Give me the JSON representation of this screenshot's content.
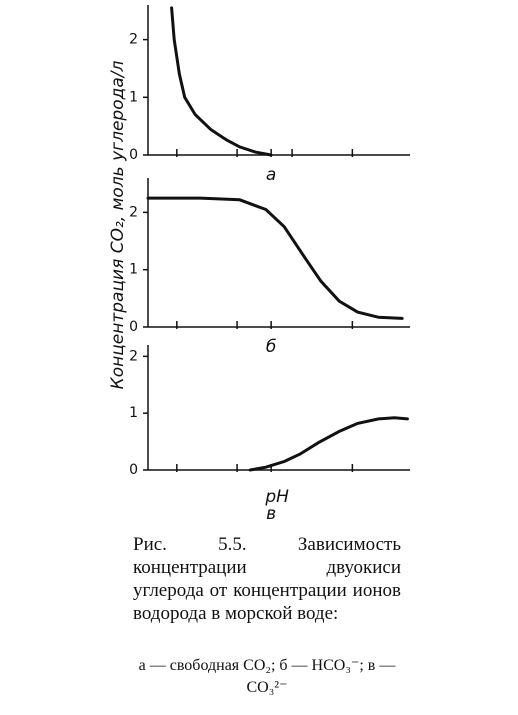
{
  "chart_data": [
    {
      "type": "line",
      "label": "а",
      "color": "#111",
      "x": [
        0.9,
        1.0,
        1.2,
        1.4,
        1.8,
        2.4,
        3.0,
        3.5,
        4.1,
        4.7
      ],
      "values": [
        2.55,
        2.0,
        1.4,
        1.0,
        0.7,
        0.44,
        0.26,
        0.14,
        0.05,
        0
      ],
      "xlim": [
        0,
        10
      ],
      "xticks": [
        1.1,
        3.4,
        4.7,
        5.5,
        7.8
      ],
      "ylim": [
        0,
        2.6
      ],
      "yticks": [
        0,
        1,
        2
      ]
    },
    {
      "type": "line",
      "label": "б",
      "color": "#111",
      "ylabel": "Концентрация CO₂, моль углерода/л",
      "x": [
        0,
        2,
        3.5,
        4.5,
        5.2,
        6.0,
        6.6,
        7.3,
        8.0,
        8.8,
        9.7
      ],
      "values": [
        2.25,
        2.25,
        2.22,
        2.05,
        1.75,
        1.2,
        0.8,
        0.45,
        0.26,
        0.17,
        0.15
      ],
      "xlim": [
        0,
        10
      ],
      "xticks": [
        1.1,
        3.4,
        4.7,
        7.8
      ],
      "ylim": [
        0,
        2.6
      ],
      "yticks": [
        0,
        1,
        2
      ]
    },
    {
      "type": "line",
      "label": "в",
      "color": "#111",
      "xlabel": "pH",
      "x": [
        3.9,
        4.5,
        5.2,
        5.8,
        6.5,
        7.3,
        8.0,
        8.8,
        9.4,
        9.9
      ],
      "values": [
        0,
        0.05,
        0.15,
        0.28,
        0.48,
        0.68,
        0.82,
        0.9,
        0.92,
        0.9
      ],
      "xlim": [
        0,
        10
      ],
      "xticks": [
        1.1,
        3.4,
        4.7,
        7.8
      ],
      "ylim": [
        0,
        2.2
      ],
      "yticks": [
        0,
        1,
        2
      ]
    }
  ],
  "caption": "Рис. 5.5. Зависимость концентрации двуокиси углерода от концентрации ионов водорода в морской воде:",
  "legend": "а — свободная CO₂; б — HCO₃⁻; в — CO₃²⁻"
}
